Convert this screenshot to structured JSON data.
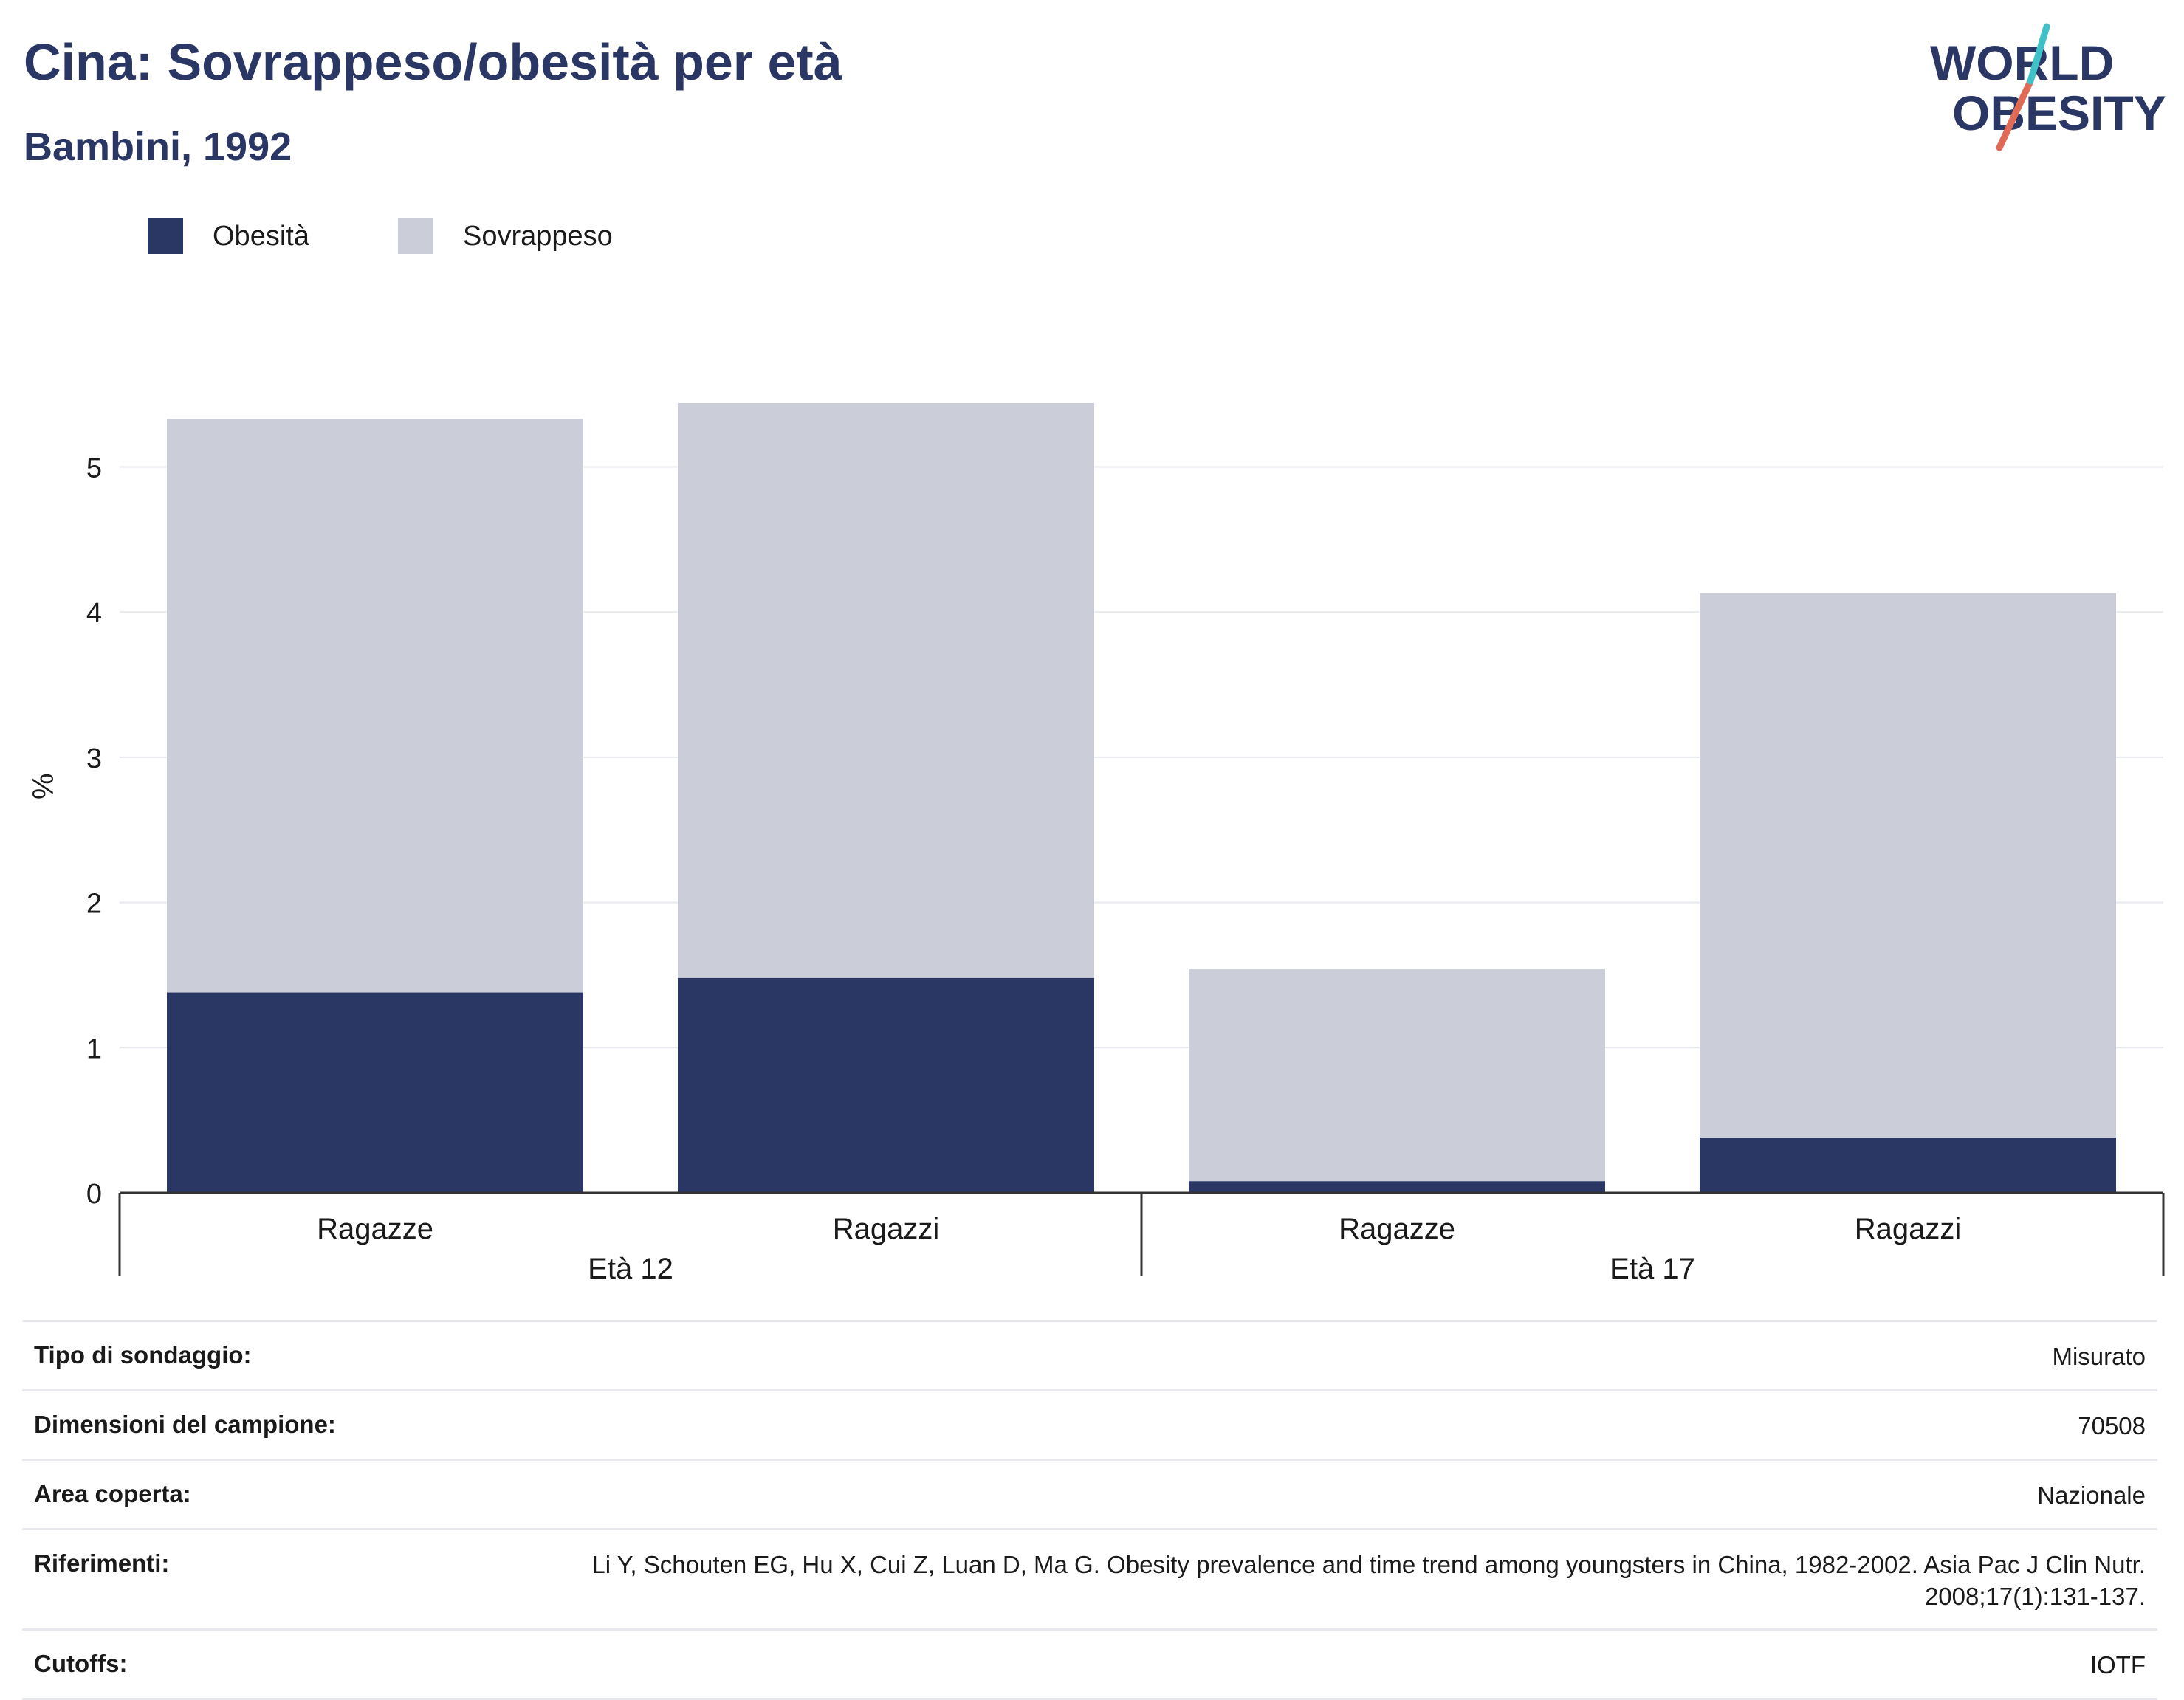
{
  "title": "Cina: Sovrappeso/obesità per età",
  "subtitle": "Bambini, 1992",
  "logo": {
    "line1": "WORLD",
    "line2": "OBESITY"
  },
  "colors": {
    "obesity": "#2a3664",
    "overweight": "#cbcdd8",
    "title": "#2a3664",
    "grid": "#e8e9ee"
  },
  "legend": [
    {
      "label": "Obesità",
      "color": "#2a3664"
    },
    {
      "label": "Sovrappeso",
      "color": "#cbcdd8"
    }
  ],
  "chart_data": {
    "type": "bar",
    "stacked": true,
    "ylabel": "%",
    "ylim": [
      0,
      5.5
    ],
    "yticks": [
      0,
      1,
      2,
      3,
      4,
      5
    ],
    "grid": true,
    "legend_position": "top-left",
    "categories": [
      "Ragazze",
      "Ragazzi",
      "Ragazze",
      "Ragazzi"
    ],
    "groups": [
      {
        "label": "Età 12",
        "categories": [
          "Ragazze",
          "Ragazzi"
        ]
      },
      {
        "label": "Età 17",
        "categories": [
          "Ragazze",
          "Ragazzi"
        ]
      }
    ],
    "series": [
      {
        "name": "Obesità",
        "values": [
          1.38,
          1.48,
          0.08,
          0.38
        ]
      },
      {
        "name": "Sovrappeso",
        "values": [
          3.95,
          3.96,
          1.46,
          3.75
        ]
      }
    ]
  },
  "info": [
    {
      "key": "Tipo di sondaggio:",
      "value": "Misurato"
    },
    {
      "key": "Dimensioni del campione:",
      "value": "70508"
    },
    {
      "key": "Area coperta:",
      "value": "Nazionale"
    },
    {
      "key": "Riferimenti:",
      "value": "Li Y, Schouten EG, Hu X, Cui Z, Luan D, Ma G. Obesity prevalence and time trend among youngsters in China, 1982-2002. Asia Pac J Clin Nutr. 2008;17(1):131-137."
    },
    {
      "key": "Cutoffs:",
      "value": "IOTF"
    }
  ]
}
